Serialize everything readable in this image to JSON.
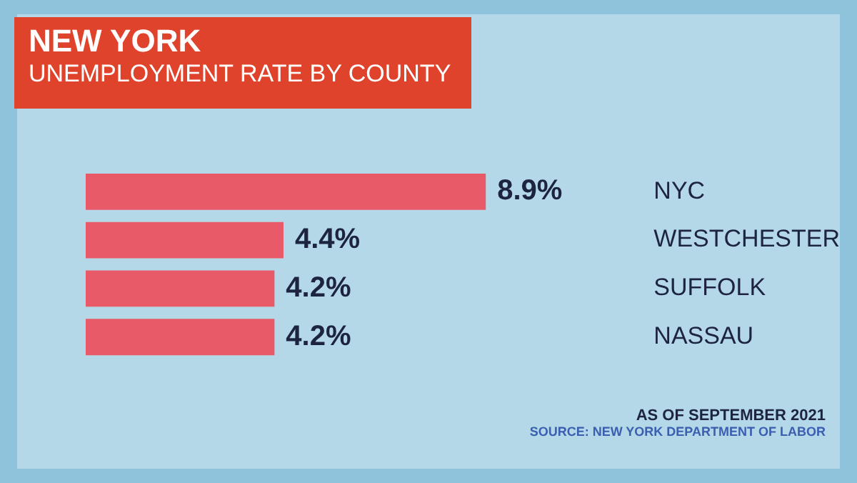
{
  "chart_data": {
    "type": "bar",
    "orientation": "horizontal",
    "title": "NEW YORK",
    "subtitle": "UNEMPLOYMENT RATE BY COUNTY",
    "categories": [
      "NYC",
      "WESTCHESTER",
      "SUFFOLK",
      "NASSAU"
    ],
    "values": [
      8.9,
      4.4,
      4.2,
      4.2
    ],
    "value_labels": [
      "8.9%",
      "4.4%",
      "4.2%",
      "4.2%"
    ],
    "color": "#e85a68",
    "annotations": [
      "AS OF SEPTEMBER 2021",
      "SOURCE: NEW YORK DEPARTMENT OF LABOR"
    ]
  }
}
